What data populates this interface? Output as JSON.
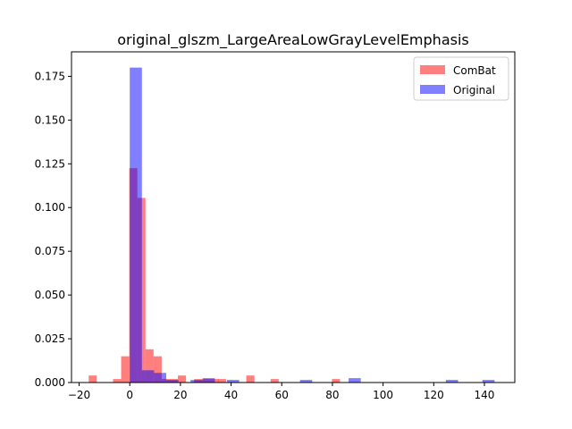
{
  "chart_data": {
    "type": "bar",
    "title": "original_glszm_LargeAreaLowGrayLevelEmphasis",
    "xlabel": "",
    "ylabel": "",
    "xlim": [
      -23,
      152
    ],
    "ylim": [
      0,
      0.189
    ],
    "xticks": [
      -20,
      0,
      20,
      40,
      60,
      80,
      100,
      120,
      140
    ],
    "xtick_labels": [
      "−20",
      "0",
      "20",
      "40",
      "60",
      "80",
      "100",
      "120",
      "140"
    ],
    "yticks": [
      0,
      0.025,
      0.05,
      0.075,
      0.1,
      0.125,
      0.15,
      0.175
    ],
    "ytick_labels": [
      "0.000",
      "0.025",
      "0.050",
      "0.075",
      "0.100",
      "0.125",
      "0.150",
      "0.175"
    ],
    "legend_position": "top-right",
    "grid": false,
    "series": [
      {
        "name": "ComBat",
        "color": "#ff0000",
        "opacity": 0.5,
        "bin_width": 3.2,
        "bins": [
          {
            "x0": -16.2,
            "y": 0.004
          },
          {
            "x0": -6.6,
            "y": 0.002
          },
          {
            "x0": -3.4,
            "y": 0.015
          },
          {
            "x0": -0.2,
            "y": 0.1225
          },
          {
            "x0": 3.0,
            "y": 0.1055
          },
          {
            "x0": 6.2,
            "y": 0.019
          },
          {
            "x0": 9.4,
            "y": 0.015
          },
          {
            "x0": 12.6,
            "y": 0.002
          },
          {
            "x0": 15.8,
            "y": 0.002
          },
          {
            "x0": 19.0,
            "y": 0.004
          },
          {
            "x0": 25.4,
            "y": 0.002
          },
          {
            "x0": 28.6,
            "y": 0.002
          },
          {
            "x0": 31.8,
            "y": 0.002
          },
          {
            "x0": 34.8,
            "y": 0.002
          },
          {
            "x0": 46.0,
            "y": 0.004
          },
          {
            "x0": 55.6,
            "y": 0.002
          },
          {
            "x0": 79.8,
            "y": 0.002
          }
        ]
      },
      {
        "name": "Original",
        "color": "#0000ff",
        "opacity": 0.5,
        "bin_width": 4.8,
        "bins": [
          {
            "x0": 0.0,
            "y": 0.18
          },
          {
            "x0": 4.8,
            "y": 0.007
          },
          {
            "x0": 9.6,
            "y": 0.0055
          },
          {
            "x0": 14.4,
            "y": 0.0015
          },
          {
            "x0": 24.0,
            "y": 0.0015
          },
          {
            "x0": 28.8,
            "y": 0.0025
          },
          {
            "x0": 38.4,
            "y": 0.0015
          },
          {
            "x0": 67.2,
            "y": 0.0015
          },
          {
            "x0": 86.4,
            "y": 0.0025
          },
          {
            "x0": 124.8,
            "y": 0.0015
          },
          {
            "x0": 139.2,
            "y": 0.0015
          }
        ]
      }
    ]
  }
}
